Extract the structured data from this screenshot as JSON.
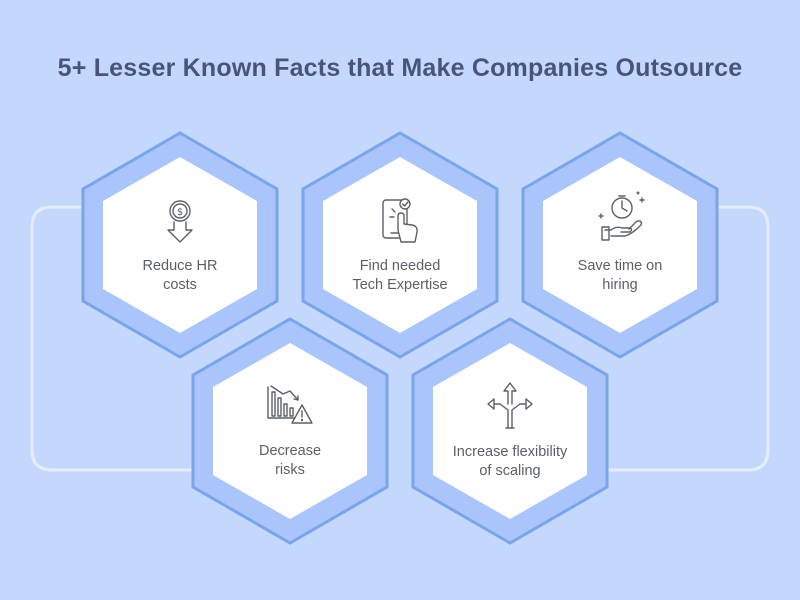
{
  "title": "5+ Lesser Known Facts that Make Companies Outsource",
  "colors": {
    "background": "#c4d8fd",
    "hex_outer_fill": "#aac5fb",
    "hex_stroke": "#7aa4ec",
    "hex_inner": "#ffffff",
    "connector": "#e4edff",
    "icon_stroke": "#5a6069",
    "title": "#4a5478"
  },
  "facts": [
    {
      "label_lines": [
        "Reduce HR",
        "costs"
      ],
      "icon": "dollar-down-icon"
    },
    {
      "label_lines": [
        "Find needed",
        "Tech Expertise"
      ],
      "icon": "touch-tablet-icon"
    },
    {
      "label_lines": [
        "Save time on",
        "hiring"
      ],
      "icon": "clock-hand-icon"
    },
    {
      "label_lines": [
        "Decrease",
        "risks"
      ],
      "icon": "chart-warning-icon"
    },
    {
      "label_lines": [
        "Increase flexibility",
        "of scaling"
      ],
      "icon": "split-arrows-icon"
    }
  ]
}
